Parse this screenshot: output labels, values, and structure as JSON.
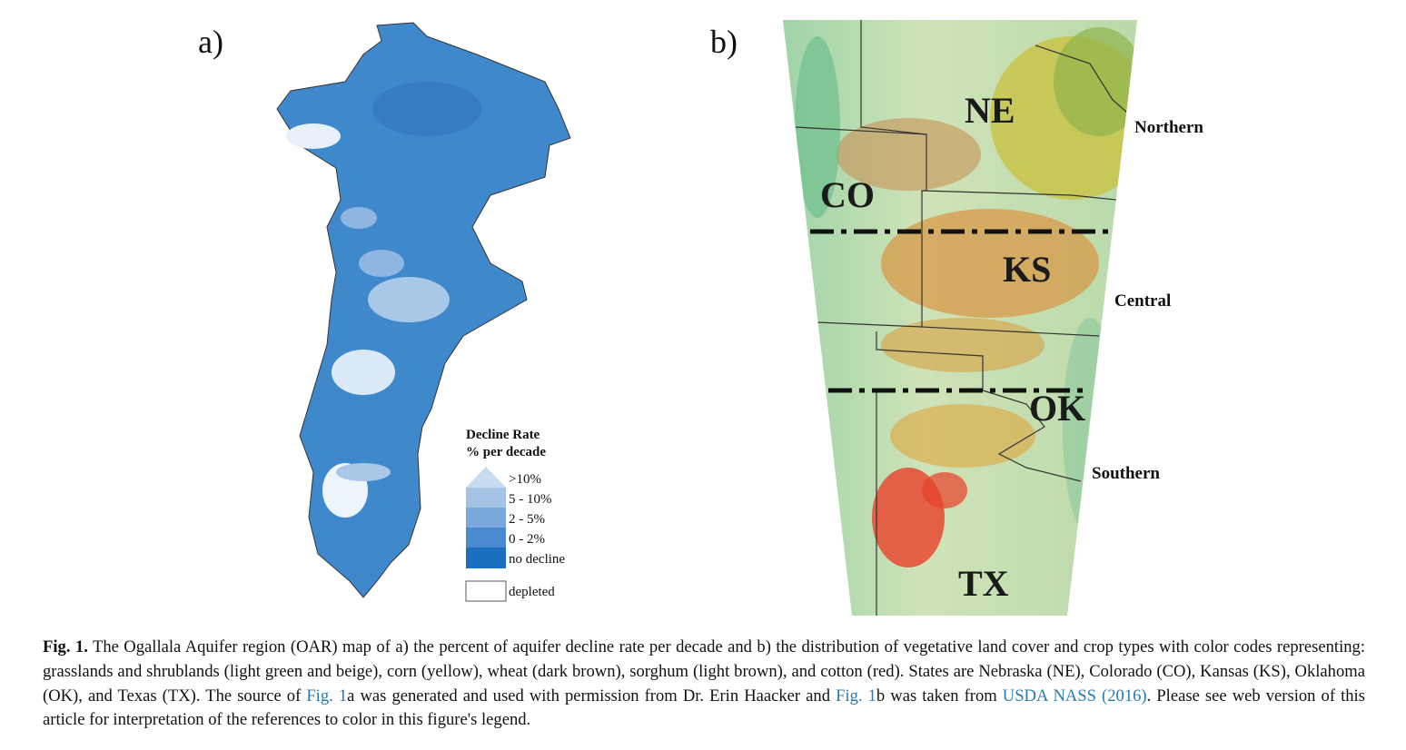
{
  "panel_a": {
    "label": "a)",
    "legend": {
      "title": [
        "Decline Rate",
        "% per decade"
      ],
      "items": [
        ">10%",
        "5 - 10%",
        "2 - 5%",
        "0 - 2%",
        "no decline",
        "depleted"
      ]
    }
  },
  "panel_b": {
    "label": "b)",
    "states": [
      "NE",
      "CO",
      "KS",
      "OK",
      "TX"
    ],
    "regions": [
      "Northern",
      "Central",
      "Southern"
    ]
  },
  "caption": {
    "parts": [
      "Fig. 1.",
      " The Ogallala Aquifer region (OAR) map of a) the percent of aquifer decline rate per decade and b) the distribution of vegetative land cover and crop types with color codes representing: grasslands and shrublands (light green and beige), corn (yellow), wheat (dark brown), sorghum (light brown), and cotton (red). States are Nebraska (NE), Colorado (CO), Kansas (KS), Oklahoma (OK), and Texas (TX). The source of ",
      "Fig. 1",
      "a was generated and used with permission from Dr. Erin Haacker and ",
      "Fig. 1",
      "b was taken from ",
      "USDA NASS (2016)",
      ". Please see web version of this article for interpretation of the references to color in this figure's legend."
    ]
  }
}
